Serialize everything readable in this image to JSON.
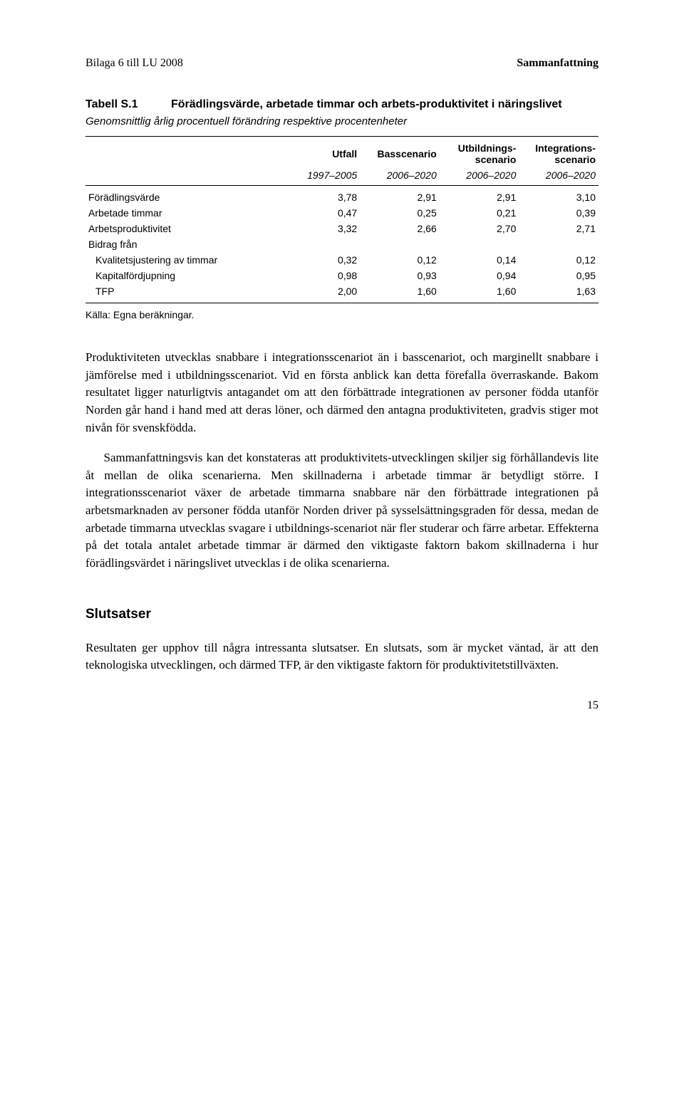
{
  "header": {
    "left": "Bilaga 6 till LU 2008",
    "right": "Sammanfattning"
  },
  "table": {
    "label": "Tabell S.1",
    "title": "Förädlingsvärde, arbetade timmar och arbets-produktivitet i näringslivet",
    "subtitle": "Genomsnittlig årlig procentuell förändring respektive procentenheter",
    "col_headers": [
      "",
      "Utfall",
      "Basscenario",
      "Utbildnings-scenario",
      "Integrations-scenario"
    ],
    "col_years": [
      "",
      "1997–2005",
      "2006–2020",
      "2006–2020",
      "2006–2020"
    ],
    "rows": [
      {
        "label": "Förädlingsvärde",
        "indent": false,
        "vals": [
          "3,78",
          "2,91",
          "2,91",
          "3,10"
        ]
      },
      {
        "label": "Arbetade timmar",
        "indent": false,
        "vals": [
          "0,47",
          "0,25",
          "0,21",
          "0,39"
        ]
      },
      {
        "label": "Arbetsproduktivitet",
        "indent": false,
        "vals": [
          "3,32",
          "2,66",
          "2,70",
          "2,71"
        ]
      },
      {
        "label": "Bidrag från",
        "indent": false,
        "vals": [
          "",
          "",
          "",
          ""
        ]
      },
      {
        "label": "Kvalitetsjustering av timmar",
        "indent": true,
        "vals": [
          "0,32",
          "0,12",
          "0,14",
          "0,12"
        ]
      },
      {
        "label": "Kapitalfördjupning",
        "indent": true,
        "vals": [
          "0,98",
          "0,93",
          "0,94",
          "0,95"
        ]
      },
      {
        "label": "TFP",
        "indent": true,
        "vals": [
          "2,00",
          "1,60",
          "1,60",
          "1,63"
        ]
      }
    ],
    "source": "Källa: Egna beräkningar."
  },
  "body": {
    "p1": "Produktiviteten utvecklas snabbare i integrationsscenariot än i basscenariot, och marginellt snabbare i jämförelse med i utbildningsscenariot. Vid en första anblick kan detta förefalla överraskande. Bakom resultatet ligger naturligtvis antagandet om att den förbättrade integrationen av personer födda utanför Norden går hand i hand med att deras löner, och därmed den antagna produktiviteten, gradvis stiger mot nivån för svenskfödda.",
    "p2": "Sammanfattningsvis kan det konstateras att produktivitets-utvecklingen skiljer sig förhållandevis lite åt mellan de olika scenarierna. Men skillnaderna i arbetade timmar är betydligt större. I integrationsscenariot växer de arbetade timmarna snabbare när den förbättrade integrationen på arbetsmarknaden av personer födda utanför Norden driver på sysselsättningsgraden för dessa, medan de arbetade timmarna utvecklas svagare i utbildnings-scenariot när fler studerar och färre arbetar. Effekterna på det totala antalet arbetade timmar är därmed den viktigaste faktorn bakom skillnaderna i hur förädlingsvärdet i näringslivet utvecklas i de olika scenarierna."
  },
  "conclusion": {
    "heading": "Slutsatser",
    "p1": "Resultaten ger upphov till några intressanta slutsatser. En slutsats, som är mycket väntad, är att den teknologiska utvecklingen, och därmed TFP, är den viktigaste faktorn för produktivitetstillväxten."
  },
  "page_number": "15"
}
